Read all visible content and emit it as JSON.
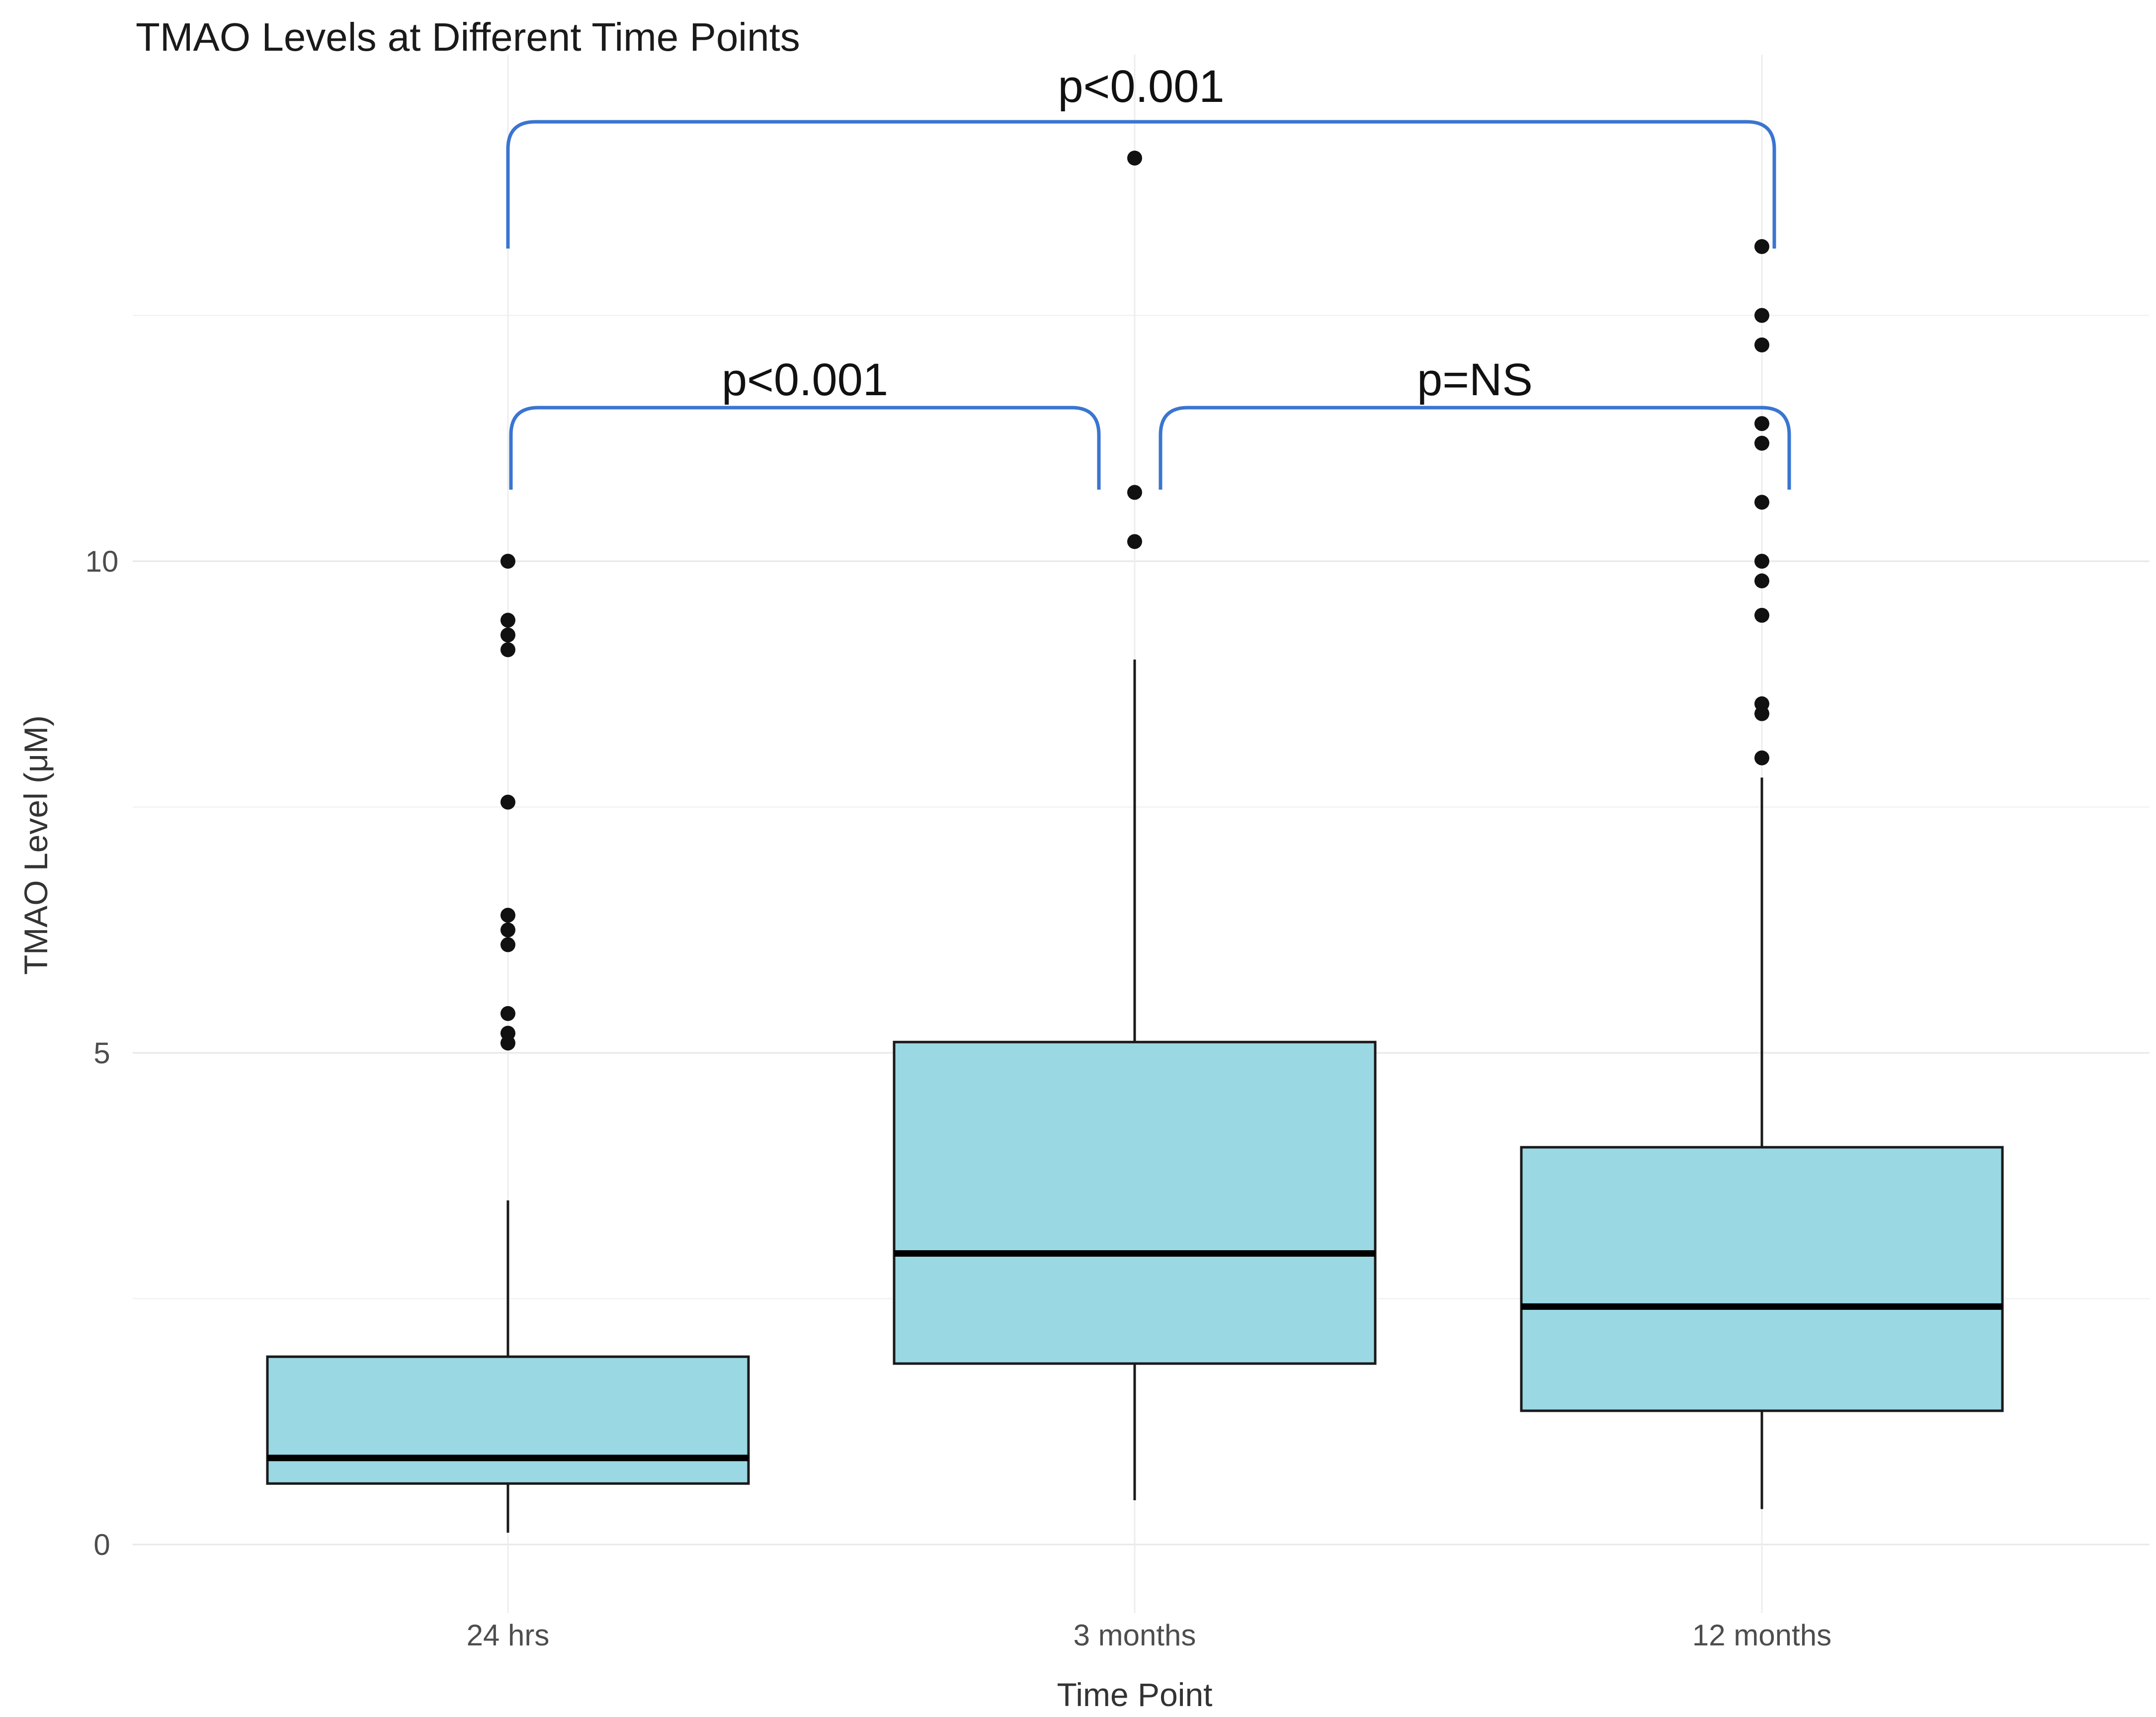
{
  "chart_data": {
    "type": "box",
    "title": "TMAO Levels at Different Time Points",
    "xlabel": "Time Point",
    "ylabel": "TMAO Level (μM)",
    "categories": [
      "24 hrs",
      "3 months",
      "12 months"
    ],
    "yticks": [
      0,
      5,
      10
    ],
    "minor_gridlines": [
      2.5,
      7.5,
      12.5
    ],
    "ylim": [
      0,
      15
    ],
    "grid": "horizontal major+minor, vertical at each category",
    "legend_position": "none",
    "series": [
      {
        "name": "24 hrs",
        "whisker_low": 0.12,
        "q1": 0.62,
        "median": 0.88,
        "q3": 1.91,
        "whisker_high": 3.5,
        "outliers": [
          5.1,
          5.2,
          5.4,
          6.1,
          6.25,
          6.4,
          7.55,
          9.1,
          9.25,
          9.4,
          10.0
        ]
      },
      {
        "name": "3 months",
        "whisker_low": 0.45,
        "q1": 1.84,
        "median": 2.96,
        "q3": 5.11,
        "whisker_high": 9.0,
        "outliers": [
          10.2,
          10.7,
          14.1
        ]
      },
      {
        "name": "12 months",
        "whisker_low": 0.36,
        "q1": 1.36,
        "median": 2.42,
        "q3": 4.04,
        "whisker_high": 7.8,
        "outliers": [
          8.0,
          8.45,
          8.55,
          9.45,
          9.8,
          10.0,
          10.6,
          11.2,
          11.4,
          12.2,
          12.5,
          13.2
        ]
      }
    ],
    "significance": [
      {
        "groups": [
          "24 hrs",
          "3 months"
        ],
        "label": "p<0.001",
        "level": "inner"
      },
      {
        "groups": [
          "3 months",
          "12 months"
        ],
        "label": "p=NS",
        "level": "inner"
      },
      {
        "groups": [
          "24 hrs",
          "12 months"
        ],
        "label": "p<0.001",
        "level": "outer"
      }
    ],
    "colors": {
      "box_fill": "#9ad8e4",
      "box_stroke": "#1a1a1a",
      "median": "#000000",
      "whisker": "#1a1a1a",
      "outlier_dot": "#111111",
      "bracket": "#3a75d0",
      "gridline_major": "#e7e7e7",
      "gridline_minor": "#efefef",
      "title_text": "#1a1a1a",
      "tick_text": "#4d4d4d"
    }
  }
}
